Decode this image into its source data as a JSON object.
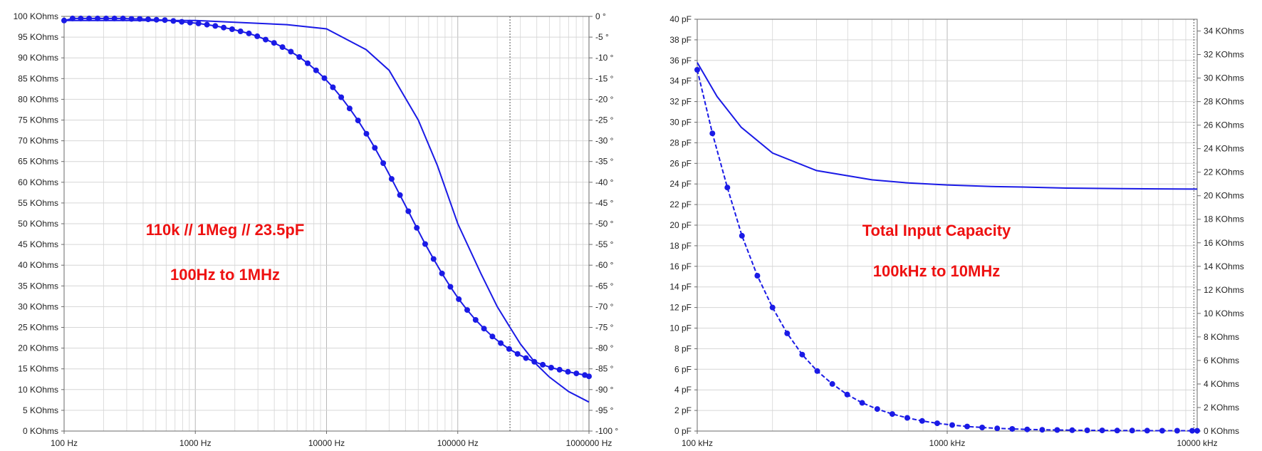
{
  "chart_data": [
    {
      "type": "line",
      "x_scale": "log",
      "xlim": [
        100,
        1000000
      ],
      "ylim_left": [
        0,
        100000
      ],
      "ylim_right": [
        -100,
        0
      ],
      "x_tick_labels": [
        "100 Hz",
        "1000 Hz",
        "10000 Hz",
        "100000 Hz",
        "1000000 Hz"
      ],
      "y_left_tick_labels": [
        "0 KOhms",
        "5 KOhms",
        "10 KOhms",
        "15 KOhms",
        "20 KOhms",
        "25 KOhms",
        "30 KOhms",
        "35 KOhms",
        "40 KOhms",
        "45 KOhms",
        "50 KOhms",
        "55 KOhms",
        "60 KOhms",
        "65 KOhms",
        "70 KOhms",
        "75 KOhms",
        "80 KOhms",
        "85 KOhms",
        "90 KOhms",
        "95 KOhms",
        "100 KOhms"
      ],
      "y_right_tick_labels": [
        "-100 °",
        "-95 °",
        "-90 °",
        "-85 °",
        "-80 °",
        "-75 °",
        "-70 °",
        "-65 °",
        "-60 °",
        "-55 °",
        "-50 °",
        "-45 °",
        "-40 °",
        "-35 °",
        "-30 °",
        "-25 °",
        "-20 °",
        "-15 °",
        "-10 °",
        "-5 °",
        "0 °"
      ],
      "annotations": [
        "110k // 1Meg // 23.5pF",
        "100Hz to 1MHz"
      ],
      "cursor_x": 250000,
      "grid": true,
      "color": "#1a1ae6",
      "series": [
        {
          "axis": "left",
          "style": "solid",
          "x": [
            100,
            1000,
            5000,
            10000,
            20000,
            30000,
            50000,
            70000,
            100000,
            150000,
            200000,
            250000,
            300000,
            400000,
            500000,
            700000,
            1000000
          ],
          "values": [
            99000,
            99000,
            98000,
            97000,
            92000,
            87000,
            75000,
            64000,
            50000,
            38000,
            30000,
            25000,
            21000,
            16000,
            13000,
            9500,
            7000
          ]
        },
        {
          "axis": "right",
          "style": "solid-with-markers",
          "x": [
            100,
            116,
            134,
            155,
            180,
            209,
            242,
            281,
            326,
            377,
            437,
            506,
            586,
            680,
            788,
            912,
            1057,
            1226,
            1420,
            1646,
            1907,
            2209,
            2561,
            2965,
            3437,
            3981,
            4612,
            5344,
            6193,
            7177,
            8318,
            9638,
            11170,
            12940,
            14990,
            17370,
            20130,
            23320,
            27030,
            31320,
            36290,
            42050,
            48730,
            56470,
            65430,
            75820,
            87860,
            101800,
            118000,
            136700,
            158400,
            183600,
            212700,
            246500,
            285600,
            331000,
            383500,
            444400,
            515000,
            596700,
            691500,
            801300,
            928500,
            1000000
          ],
          "values": [
            -1,
            -0.5,
            -0.5,
            -0.5,
            -0.5,
            -0.5,
            -0.5,
            -0.5,
            -0.6,
            -0.6,
            -0.7,
            -0.8,
            -0.9,
            -1.1,
            -1.3,
            -1.5,
            -1.7,
            -2,
            -2.3,
            -2.7,
            -3.1,
            -3.6,
            -4.1,
            -4.8,
            -5.6,
            -6.4,
            -7.4,
            -8.5,
            -9.8,
            -11.3,
            -13,
            -14.9,
            -17.1,
            -19.5,
            -22.2,
            -25.1,
            -28.3,
            -31.7,
            -35.4,
            -39.2,
            -43.1,
            -47,
            -51,
            -54.9,
            -58.5,
            -62,
            -65.2,
            -68.2,
            -70.8,
            -73.2,
            -75.3,
            -77.2,
            -78.8,
            -80.2,
            -81.4,
            -82.4,
            -83.3,
            -84,
            -84.7,
            -85.2,
            -85.7,
            -86.1,
            -86.5,
            -86.8
          ]
        }
      ]
    },
    {
      "type": "line",
      "x_scale": "log",
      "xlim": [
        100,
        10000
      ],
      "ylim_left": [
        0,
        40
      ],
      "ylim_right": [
        0,
        35000
      ],
      "x_tick_labels": [
        "100 kHz",
        "1000 kHz",
        "10000 kHz"
      ],
      "y_left_tick_labels": [
        "0 pF",
        "2 pF",
        "4 pF",
        "6 pF",
        "8 pF",
        "10 pF",
        "12 pF",
        "14 pF",
        "16 pF",
        "18 pF",
        "20 pF",
        "22 pF",
        "24 pF",
        "26 pF",
        "28 pF",
        "30 pF",
        "32 pF",
        "34 pF",
        "36 pF",
        "38 pF",
        "40 pF"
      ],
      "y_right_tick_labels": [
        "0 KOhms",
        "2 KOhms",
        "4 KOhms",
        "6 KOhms",
        "8 KOhms",
        "10 KOhms",
        "12 KOhms",
        "14 KOhms",
        "16 KOhms",
        "18 KOhms",
        "20 KOhms",
        "22 KOhms",
        "24 KOhms",
        "26 KOhms",
        "28 KOhms",
        "30 KOhms",
        "32 KOhms",
        "34 KOhms"
      ],
      "annotations": [
        "Total Input Capacity",
        "100kHz to 10MHz"
      ],
      "cursor_x": 9700,
      "grid": true,
      "color": "#1a1ae6",
      "series": [
        {
          "axis": "left",
          "style": "solid",
          "x": [
            100,
            120,
            150,
            200,
            300,
            500,
            700,
            1000,
            1500,
            2000,
            3000,
            5000,
            7000,
            10000
          ],
          "values": [
            35.8,
            32.5,
            29.5,
            27,
            25.3,
            24.4,
            24.1,
            23.9,
            23.75,
            23.7,
            23.6,
            23.55,
            23.52,
            23.5
          ]
        },
        {
          "axis": "right",
          "style": "dashed-with-markers",
          "x": [
            100,
            115,
            132,
            151,
            174,
            200,
            229,
            263,
            302,
            347,
            398,
            457,
            525,
            603,
            692,
            794,
            912,
            1047,
            1202,
            1380,
            1585,
            1820,
            2089,
            2399,
            2754,
            3162,
            3631,
            4169,
            4786,
            5495,
            6310,
            7244,
            8318,
            9550,
            10000
          ],
          "values": [
            30700,
            25300,
            20700,
            16600,
            13200,
            10500,
            8300,
            6500,
            5100,
            4000,
            3100,
            2400,
            1870,
            1450,
            1120,
            860,
            660,
            510,
            390,
            300,
            230,
            180,
            140,
            110,
            90,
            75,
            62,
            52,
            45,
            40,
            35,
            31,
            28,
            25,
            24
          ]
        }
      ]
    }
  ]
}
